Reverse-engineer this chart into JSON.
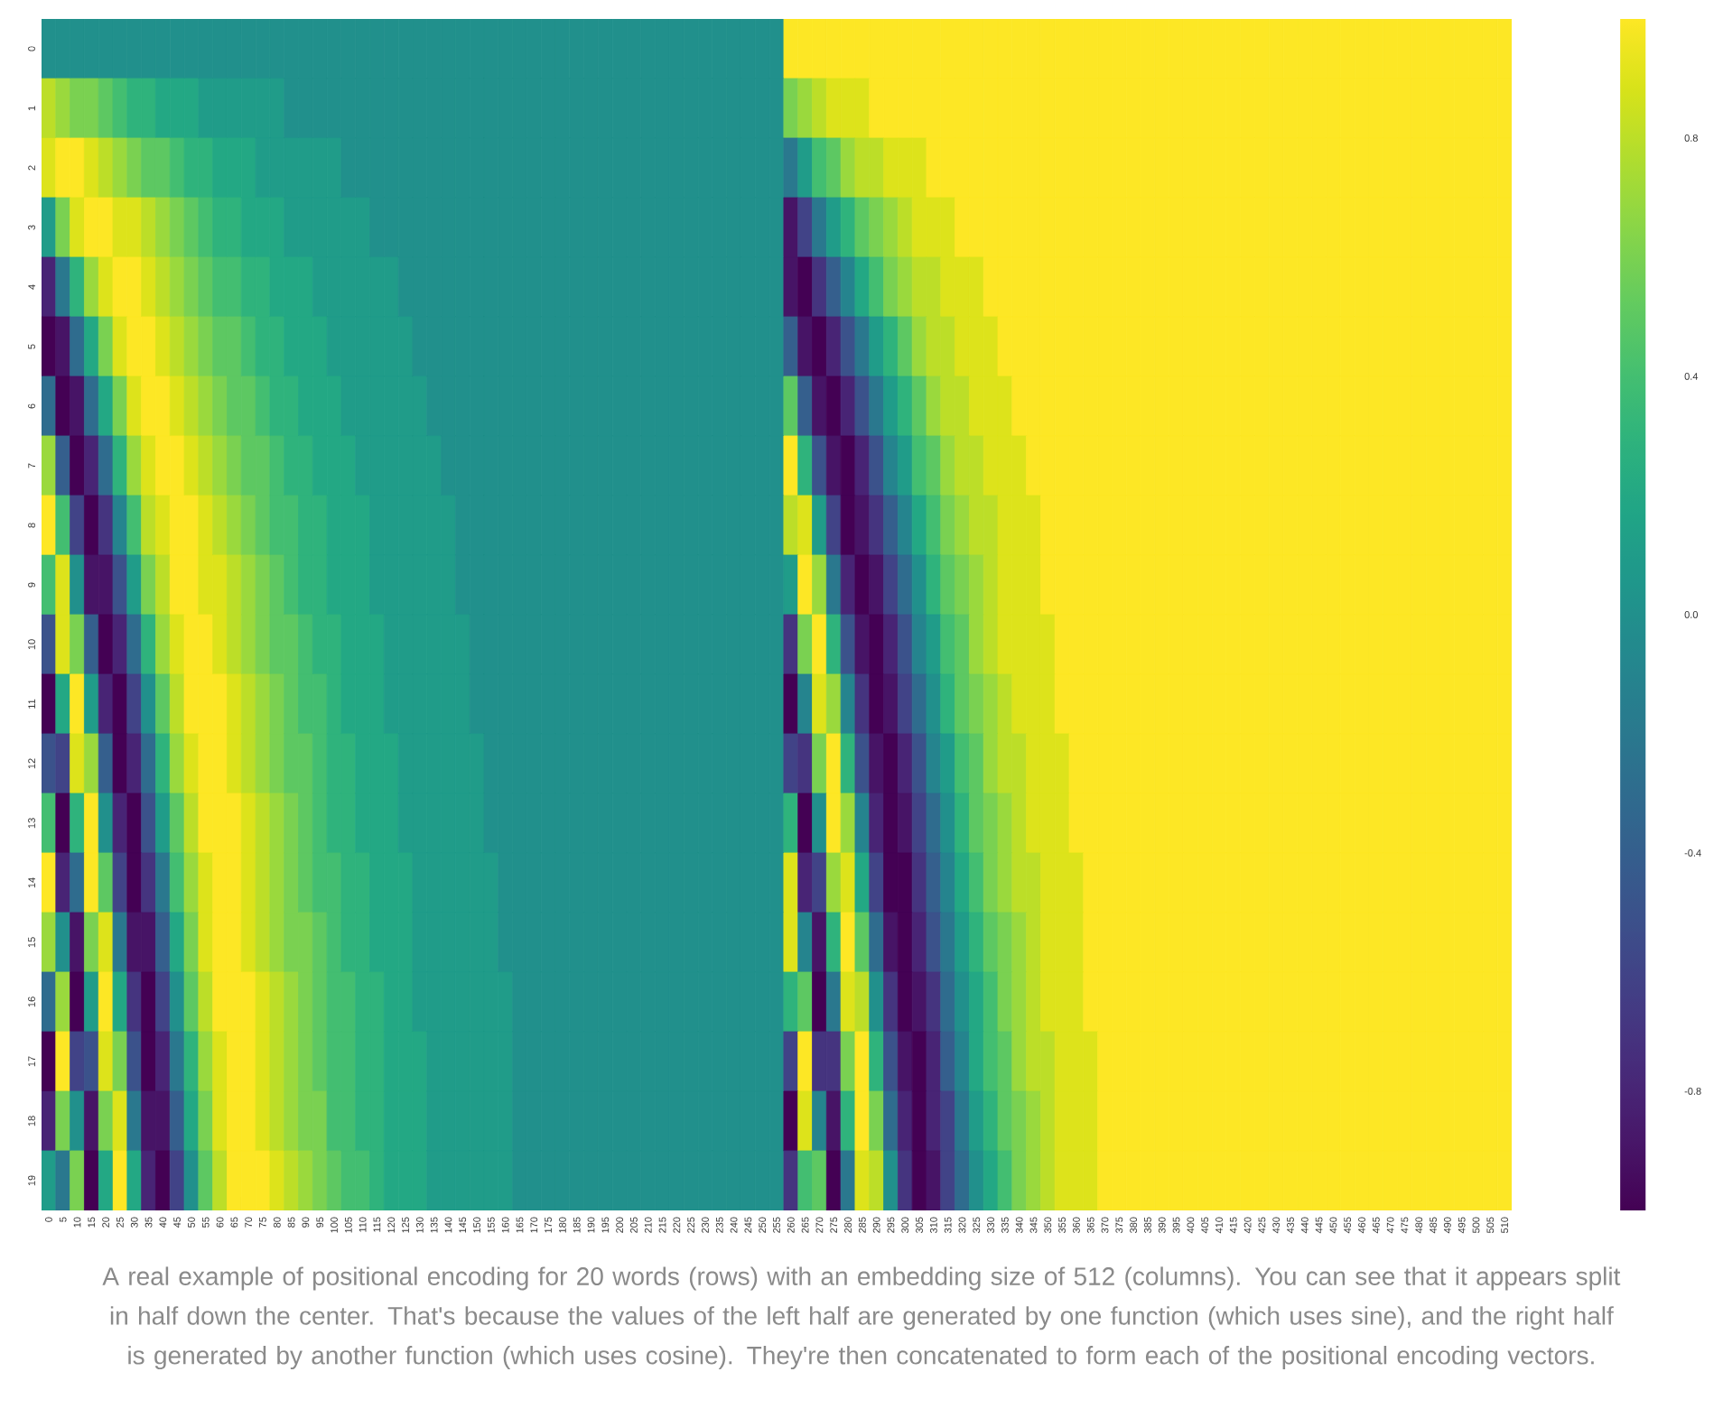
{
  "chart_data": {
    "type": "heatmap",
    "categories": [
      "0",
      "5",
      "10",
      "15",
      "20",
      "25",
      "30",
      "35",
      "40",
      "45",
      "50",
      "55",
      "60",
      "65",
      "70",
      "75",
      "80",
      "85",
      "90",
      "95",
      "100",
      "105",
      "110",
      "115",
      "120",
      "125",
      "130",
      "135",
      "140",
      "145",
      "150",
      "155",
      "160",
      "165",
      "170",
      "175",
      "180",
      "185",
      "190",
      "195",
      "200",
      "205",
      "210",
      "215",
      "220",
      "225",
      "230",
      "235",
      "240",
      "245",
      "250",
      "255",
      "260",
      "265",
      "270",
      "275",
      "280",
      "285",
      "290",
      "295",
      "300",
      "305",
      "310",
      "315",
      "320",
      "325",
      "330",
      "335",
      "340",
      "345",
      "350",
      "355",
      "360",
      "365",
      "370",
      "375",
      "380",
      "385",
      "390",
      "395",
      "400",
      "405",
      "410",
      "415",
      "420",
      "425",
      "430",
      "435",
      "440",
      "445",
      "450",
      "455",
      "460",
      "465",
      "470",
      "475",
      "480",
      "485",
      "490",
      "495",
      "500",
      "505",
      "510"
    ],
    "y_categories": [
      "0",
      "1",
      "2",
      "3",
      "4",
      "5",
      "6",
      "7",
      "8",
      "9",
      "10",
      "11",
      "12",
      "13",
      "14",
      "15",
      "16",
      "17",
      "18",
      "19"
    ],
    "cells": [
      [
        0,
        0,
        0,
        0,
        0,
        0,
        0,
        0,
        0,
        0,
        0,
        0,
        0,
        0,
        0,
        0,
        0,
        0,
        0,
        0,
        0,
        0,
        0,
        0,
        0,
        0,
        0,
        0,
        0,
        0,
        0,
        0,
        0,
        0,
        0,
        0,
        0,
        0,
        0,
        0,
        0,
        0,
        0,
        0,
        0,
        0,
        0,
        0,
        0,
        0,
        0,
        0,
        1,
        1,
        1,
        1,
        1,
        1,
        1,
        1,
        1,
        1,
        1,
        1,
        1,
        1,
        1,
        1,
        1,
        1,
        1,
        1,
        1,
        1,
        1,
        1,
        1,
        1,
        1,
        1,
        1,
        1,
        1,
        1,
        1,
        1,
        1,
        1,
        1,
        1,
        1,
        1,
        1,
        1,
        1,
        1,
        1,
        1,
        1,
        1,
        1,
        1,
        1
      ],
      [
        0.8,
        0.7,
        0.6,
        0.6,
        0.5,
        0.4,
        0.3,
        0.3,
        0.2,
        0.2,
        0.2,
        0.1,
        0.1,
        0.1,
        0.1,
        0.1,
        0.1,
        0,
        0,
        0,
        0,
        0,
        0,
        0,
        0,
        0,
        0,
        0,
        0,
        0,
        0,
        0,
        0,
        0,
        0,
        0,
        0,
        0,
        0,
        0,
        0,
        0,
        0,
        0,
        0,
        0,
        0,
        0,
        0,
        0,
        0,
        0,
        0.6,
        0.7,
        0.8,
        0.9,
        0.9,
        0.9,
        1,
        1,
        1,
        1,
        1,
        1,
        1,
        1,
        1,
        1,
        1,
        1,
        1,
        1,
        1,
        1,
        1,
        1,
        1,
        1,
        1,
        1,
        1,
        1,
        1,
        1,
        1,
        1,
        1,
        1,
        1,
        1,
        1,
        1,
        1,
        1,
        1,
        1,
        1,
        1,
        1,
        1,
        1,
        1,
        1
      ],
      [
        0.9,
        1,
        1,
        0.9,
        0.8,
        0.7,
        0.6,
        0.5,
        0.5,
        0.4,
        0.3,
        0.3,
        0.2,
        0.2,
        0.2,
        0.1,
        0.1,
        0.1,
        0.1,
        0.1,
        0.1,
        0,
        0,
        0,
        0,
        0,
        0,
        0,
        0,
        0,
        0,
        0,
        0,
        0,
        0,
        0,
        0,
        0,
        0,
        0,
        0,
        0,
        0,
        0,
        0,
        0,
        0,
        0,
        0,
        0,
        0,
        0,
        -0.2,
        0.1,
        0.4,
        0.5,
        0.7,
        0.8,
        0.8,
        0.9,
        0.9,
        0.9,
        1,
        1,
        1,
        1,
        1,
        1,
        1,
        1,
        1,
        1,
        1,
        1,
        1,
        1,
        1,
        1,
        1,
        1,
        1,
        1,
        1,
        1,
        1,
        1,
        1,
        1,
        1,
        1,
        1,
        1,
        1,
        1,
        1,
        1,
        1,
        1,
        1,
        1,
        1,
        1,
        1
      ],
      [
        0.1,
        0.6,
        0.9,
        1,
        1,
        0.9,
        0.9,
        0.8,
        0.7,
        0.6,
        0.5,
        0.4,
        0.3,
        0.3,
        0.2,
        0.2,
        0.2,
        0.1,
        0.1,
        0.1,
        0.1,
        0.1,
        0.1,
        0,
        0,
        0,
        0,
        0,
        0,
        0,
        0,
        0,
        0,
        0,
        0,
        0,
        0,
        0,
        0,
        0,
        0,
        0,
        0,
        0,
        0,
        0,
        0,
        0,
        0,
        0,
        0,
        0,
        -0.9,
        -0.6,
        -0.2,
        0.1,
        0.3,
        0.5,
        0.6,
        0.7,
        0.8,
        0.9,
        0.9,
        0.9,
        1,
        1,
        1,
        1,
        1,
        1,
        1,
        1,
        1,
        1,
        1,
        1,
        1,
        1,
        1,
        1,
        1,
        1,
        1,
        1,
        1,
        1,
        1,
        1,
        1,
        1,
        1,
        1,
        1,
        1,
        1,
        1,
        1,
        1,
        1,
        1,
        1,
        1,
        1
      ],
      [
        -0.8,
        -0.2,
        0.3,
        0.7,
        0.9,
        1,
        1,
        0.9,
        0.8,
        0.7,
        0.6,
        0.5,
        0.4,
        0.4,
        0.3,
        0.3,
        0.2,
        0.2,
        0.2,
        0.1,
        0.1,
        0.1,
        0.1,
        0.1,
        0.1,
        0,
        0,
        0,
        0,
        0,
        0,
        0,
        0,
        0,
        0,
        0,
        0,
        0,
        0,
        0,
        0,
        0,
        0,
        0,
        0,
        0,
        0,
        0,
        0,
        0,
        0,
        0,
        -0.9,
        -1,
        -0.7,
        -0.4,
        -0.1,
        0.2,
        0.4,
        0.6,
        0.7,
        0.8,
        0.8,
        0.9,
        0.9,
        0.9,
        1,
        1,
        1,
        1,
        1,
        1,
        1,
        1,
        1,
        1,
        1,
        1,
        1,
        1,
        1,
        1,
        1,
        1,
        1,
        1,
        1,
        1,
        1,
        1,
        1,
        1,
        1,
        1,
        1,
        1,
        1,
        1,
        1,
        1,
        1,
        1,
        1
      ],
      [
        -1,
        -0.9,
        -0.3,
        0.2,
        0.6,
        0.9,
        1,
        1,
        0.9,
        0.8,
        0.7,
        0.6,
        0.5,
        0.5,
        0.4,
        0.3,
        0.3,
        0.2,
        0.2,
        0.2,
        0.1,
        0.1,
        0.1,
        0.1,
        0.1,
        0.1,
        0,
        0,
        0,
        0,
        0,
        0,
        0,
        0,
        0,
        0,
        0,
        0,
        0,
        0,
        0,
        0,
        0,
        0,
        0,
        0,
        0,
        0,
        0,
        0,
        0,
        0,
        -0.4,
        -0.9,
        -1,
        -0.8,
        -0.5,
        -0.2,
        0.1,
        0.3,
        0.5,
        0.7,
        0.8,
        0.8,
        0.9,
        0.9,
        0.9,
        1,
        1,
        1,
        1,
        1,
        1,
        1,
        1,
        1,
        1,
        1,
        1,
        1,
        1,
        1,
        1,
        1,
        1,
        1,
        1,
        1,
        1,
        1,
        1,
        1,
        1,
        1,
        1,
        1,
        1,
        1,
        1,
        1,
        1,
        1,
        1
      ],
      [
        -0.3,
        -1,
        -0.9,
        -0.3,
        0.2,
        0.6,
        0.9,
        1,
        1,
        0.9,
        0.8,
        0.7,
        0.6,
        0.5,
        0.5,
        0.4,
        0.3,
        0.3,
        0.2,
        0.2,
        0.2,
        0.1,
        0.1,
        0.1,
        0.1,
        0.1,
        0.1,
        0,
        0,
        0,
        0,
        0,
        0,
        0,
        0,
        0,
        0,
        0,
        0,
        0,
        0,
        0,
        0,
        0,
        0,
        0,
        0,
        0,
        0,
        0,
        0,
        0,
        0.5,
        -0.4,
        -0.9,
        -1,
        -0.8,
        -0.5,
        -0.2,
        0.1,
        0.3,
        0.5,
        0.7,
        0.8,
        0.8,
        0.9,
        0.9,
        0.9,
        1,
        1,
        1,
        1,
        1,
        1,
        1,
        1,
        1,
        1,
        1,
        1,
        1,
        1,
        1,
        1,
        1,
        1,
        1,
        1,
        1,
        1,
        1,
        1,
        1,
        1,
        1,
        1,
        1,
        1,
        1,
        1,
        1,
        1,
        1
      ],
      [
        0.7,
        -0.4,
        -1,
        -0.8,
        -0.3,
        0.3,
        0.7,
        0.9,
        1,
        1,
        0.9,
        0.8,
        0.7,
        0.6,
        0.5,
        0.5,
        0.4,
        0.3,
        0.3,
        0.2,
        0.2,
        0.2,
        0.1,
        0.1,
        0.1,
        0.1,
        0.1,
        0.1,
        0,
        0,
        0,
        0,
        0,
        0,
        0,
        0,
        0,
        0,
        0,
        0,
        0,
        0,
        0,
        0,
        0,
        0,
        0,
        0,
        0,
        0,
        0,
        0,
        1,
        0.3,
        -0.5,
        -0.9,
        -1,
        -0.8,
        -0.5,
        -0.1,
        0.1,
        0.4,
        0.5,
        0.7,
        0.8,
        0.8,
        0.9,
        0.9,
        0.9,
        1,
        1,
        1,
        1,
        1,
        1,
        1,
        1,
        1,
        1,
        1,
        1,
        1,
        1,
        1,
        1,
        1,
        1,
        1,
        1,
        1,
        1,
        1,
        1,
        1,
        1,
        1,
        1,
        1,
        1,
        1,
        1,
        1,
        1
      ],
      [
        1,
        0.4,
        -0.6,
        -1,
        -0.7,
        -0.1,
        0.4,
        0.8,
        0.9,
        1,
        1,
        0.9,
        0.8,
        0.7,
        0.6,
        0.5,
        0.4,
        0.4,
        0.3,
        0.3,
        0.2,
        0.2,
        0.2,
        0.1,
        0.1,
        0.1,
        0.1,
        0.1,
        0.1,
        0,
        0,
        0,
        0,
        0,
        0,
        0,
        0,
        0,
        0,
        0,
        0,
        0,
        0,
        0,
        0,
        0,
        0,
        0,
        0,
        0,
        0,
        0,
        0.8,
        0.9,
        0.1,
        -0.6,
        -1,
        -0.9,
        -0.7,
        -0.4,
        -0.1,
        0.2,
        0.4,
        0.6,
        0.7,
        0.8,
        0.8,
        0.9,
        0.9,
        0.9,
        1,
        1,
        1,
        1,
        1,
        1,
        1,
        1,
        1,
        1,
        1,
        1,
        1,
        1,
        1,
        1,
        1,
        1,
        1,
        1,
        1,
        1,
        1,
        1,
        1,
        1,
        1,
        1,
        1,
        1,
        1,
        1,
        1
      ],
      [
        0.4,
        0.9,
        0,
        -0.9,
        -0.9,
        -0.5,
        0.1,
        0.6,
        0.8,
        1,
        1,
        0.9,
        0.9,
        0.8,
        0.7,
        0.6,
        0.5,
        0.4,
        0.3,
        0.3,
        0.2,
        0.2,
        0.2,
        0.1,
        0.1,
        0.1,
        0.1,
        0.1,
        0.1,
        0,
        0,
        0,
        0,
        0,
        0,
        0,
        0,
        0,
        0,
        0,
        0,
        0,
        0,
        0,
        0,
        0,
        0,
        0,
        0,
        0,
        0,
        0,
        0.1,
        1,
        0.7,
        -0.2,
        -0.8,
        -1,
        -0.9,
        -0.6,
        -0.3,
        0,
        0.3,
        0.5,
        0.6,
        0.7,
        0.8,
        0.9,
        0.9,
        0.9,
        1,
        1,
        1,
        1,
        1,
        1,
        1,
        1,
        1,
        1,
        1,
        1,
        1,
        1,
        1,
        1,
        1,
        1,
        1,
        1,
        1,
        1,
        1,
        1,
        1,
        1,
        1,
        1,
        1,
        1,
        1,
        1,
        1
      ],
      [
        -0.5,
        0.9,
        0.6,
        -0.4,
        -1,
        -0.8,
        -0.3,
        0.3,
        0.7,
        0.9,
        1,
        1,
        0.9,
        0.8,
        0.7,
        0.6,
        0.5,
        0.5,
        0.4,
        0.3,
        0.3,
        0.2,
        0.2,
        0.2,
        0.1,
        0.1,
        0.1,
        0.1,
        0.1,
        0.1,
        0,
        0,
        0,
        0,
        0,
        0,
        0,
        0,
        0,
        0,
        0,
        0,
        0,
        0,
        0,
        0,
        0,
        0,
        0,
        0,
        0,
        0,
        -0.7,
        0.6,
        1,
        0.3,
        -0.5,
        -0.9,
        -1,
        -0.8,
        -0.5,
        -0.1,
        0.1,
        0.4,
        0.5,
        0.7,
        0.8,
        0.9,
        0.9,
        0.9,
        0.9,
        1,
        1,
        1,
        1,
        1,
        1,
        1,
        1,
        1,
        1,
        1,
        1,
        1,
        1,
        1,
        1,
        1,
        1,
        1,
        1,
        1,
        1,
        1,
        1,
        1,
        1,
        1,
        1,
        1,
        1,
        1,
        1
      ],
      [
        -1,
        0.2,
        1,
        0.1,
        -0.8,
        -1,
        -0.6,
        0,
        0.5,
        0.8,
        1,
        1,
        1,
        0.9,
        0.8,
        0.7,
        0.6,
        0.5,
        0.4,
        0.4,
        0.3,
        0.2,
        0.2,
        0.2,
        0.1,
        0.1,
        0.1,
        0.1,
        0.1,
        0.1,
        0,
        0,
        0,
        0,
        0,
        0,
        0,
        0,
        0,
        0,
        0,
        0,
        0,
        0,
        0,
        0,
        0,
        0,
        0,
        0,
        0,
        0,
        -1,
        -0.1,
        0.9,
        0.7,
        -0.1,
        -0.7,
        -1,
        -0.9,
        -0.6,
        -0.3,
        0,
        0.3,
        0.5,
        0.6,
        0.7,
        0.8,
        0.9,
        0.9,
        0.9,
        1,
        1,
        1,
        1,
        1,
        1,
        1,
        1,
        1,
        1,
        1,
        1,
        1,
        1,
        1,
        1,
        1,
        1,
        1,
        1,
        1,
        1,
        1,
        1,
        1,
        1,
        1,
        1,
        1,
        1,
        1,
        1
      ],
      [
        -0.5,
        -0.6,
        0.9,
        0.7,
        -0.4,
        -1,
        -0.8,
        -0.3,
        0.3,
        0.7,
        0.9,
        1,
        1,
        0.9,
        0.8,
        0.7,
        0.6,
        0.5,
        0.5,
        0.4,
        0.3,
        0.3,
        0.2,
        0.2,
        0.2,
        0.1,
        0.1,
        0.1,
        0.1,
        0.1,
        0.1,
        0,
        0,
        0,
        0,
        0,
        0,
        0,
        0,
        0,
        0,
        0,
        0,
        0,
        0,
        0,
        0,
        0,
        0,
        0,
        0,
        0,
        -0.6,
        -0.7,
        0.6,
        1,
        0.3,
        -0.5,
        -0.9,
        -1,
        -0.8,
        -0.5,
        -0.1,
        0.1,
        0.4,
        0.5,
        0.7,
        0.8,
        0.8,
        0.9,
        0.9,
        0.9,
        1,
        1,
        1,
        1,
        1,
        1,
        1,
        1,
        1,
        1,
        1,
        1,
        1,
        1,
        1,
        1,
        1,
        1,
        1,
        1,
        1,
        1,
        1,
        1,
        1,
        1,
        1,
        1,
        1,
        1,
        1
      ],
      [
        0.4,
        -1,
        0.3,
        1,
        0,
        -0.8,
        -1,
        -0.5,
        0.1,
        0.5,
        0.8,
        1,
        1,
        1,
        0.9,
        0.8,
        0.7,
        0.6,
        0.5,
        0.4,
        0.3,
        0.3,
        0.2,
        0.2,
        0.2,
        0.1,
        0.1,
        0.1,
        0.1,
        0.1,
        0.1,
        0,
        0,
        0,
        0,
        0,
        0,
        0,
        0,
        0,
        0,
        0,
        0,
        0,
        0,
        0,
        0,
        0,
        0,
        0,
        0,
        0,
        0.3,
        -1,
        0,
        1,
        0.7,
        -0.1,
        -0.8,
        -1,
        -0.9,
        -0.6,
        -0.3,
        0,
        0.3,
        0.5,
        0.6,
        0.7,
        0.8,
        0.9,
        0.9,
        0.9,
        1,
        1,
        1,
        1,
        1,
        1,
        1,
        1,
        1,
        1,
        1,
        1,
        1,
        1,
        1,
        1,
        1,
        1,
        1,
        1,
        1,
        1,
        1,
        1,
        1,
        1,
        1,
        1,
        1,
        1,
        1
      ],
      [
        1,
        -0.8,
        -0.3,
        1,
        0.5,
        -0.6,
        -1,
        -0.7,
        -0.2,
        0.4,
        0.7,
        0.9,
        1,
        1,
        0.9,
        0.8,
        0.7,
        0.6,
        0.5,
        0.4,
        0.4,
        0.3,
        0.3,
        0.2,
        0.2,
        0.2,
        0.1,
        0.1,
        0.1,
        0.1,
        0.1,
        0.1,
        0,
        0,
        0,
        0,
        0,
        0,
        0,
        0,
        0,
        0,
        0,
        0,
        0,
        0,
        0,
        0,
        0,
        0,
        0,
        0,
        0.9,
        -0.8,
        -0.6,
        0.7,
        0.9,
        0.2,
        -0.6,
        -1,
        -1,
        -0.7,
        -0.4,
        -0.1,
        0.2,
        0.4,
        0.6,
        0.7,
        0.8,
        0.8,
        0.9,
        0.9,
        0.9,
        1,
        1,
        1,
        1,
        1,
        1,
        1,
        1,
        1,
        1,
        1,
        1,
        1,
        1,
        1,
        1,
        1,
        1,
        1,
        1,
        1,
        1,
        1,
        1,
        1,
        1,
        1,
        1,
        1,
        1
      ],
      [
        0.7,
        0,
        -0.9,
        0.6,
        0.9,
        -0.2,
        -0.9,
        -0.9,
        -0.4,
        0.2,
        0.6,
        0.9,
        1,
        1,
        0.9,
        0.8,
        0.7,
        0.6,
        0.6,
        0.5,
        0.4,
        0.3,
        0.3,
        0.2,
        0.2,
        0.2,
        0.1,
        0.1,
        0.1,
        0.1,
        0.1,
        0.1,
        0,
        0,
        0,
        0,
        0,
        0,
        0,
        0,
        0,
        0,
        0,
        0,
        0,
        0,
        0,
        0,
        0,
        0,
        0,
        0,
        0.9,
        -0.1,
        -0.9,
        0.3,
        1,
        0.5,
        -0.3,
        -0.9,
        -1,
        -0.8,
        -0.5,
        -0.2,
        0.1,
        0.3,
        0.5,
        0.6,
        0.7,
        0.8,
        0.9,
        0.9,
        0.9,
        1,
        1,
        1,
        1,
        1,
        1,
        1,
        1,
        1,
        1,
        1,
        1,
        1,
        1,
        1,
        1,
        1,
        1,
        1,
        1,
        1,
        1,
        1,
        1,
        1,
        1,
        1,
        1,
        1,
        1
      ],
      [
        -0.3,
        0.7,
        -1,
        0.1,
        1,
        0.2,
        -0.7,
        -1,
        -0.6,
        0,
        0.5,
        0.8,
        1,
        1,
        1,
        0.9,
        0.8,
        0.7,
        0.6,
        0.5,
        0.4,
        0.4,
        0.3,
        0.3,
        0.2,
        0.2,
        0.1,
        0.1,
        0.1,
        0.1,
        0.1,
        0.1,
        0.1,
        0,
        0,
        0,
        0,
        0,
        0,
        0,
        0,
        0,
        0,
        0,
        0,
        0,
        0,
        0,
        0,
        0,
        0,
        0,
        0.3,
        0.5,
        -1,
        -0.2,
        0.9,
        0.8,
        0,
        -0.7,
        -1,
        -0.9,
        -0.7,
        -0.3,
        0,
        0.2,
        0.4,
        0.6,
        0.7,
        0.8,
        0.9,
        0.9,
        0.9,
        1,
        1,
        1,
        1,
        1,
        1,
        1,
        1,
        1,
        1,
        1,
        1,
        1,
        1,
        1,
        1,
        1,
        1,
        1,
        1,
        1,
        1,
        1,
        1,
        1,
        1,
        1,
        1,
        1,
        1
      ],
      [
        -1,
        1,
        -0.6,
        -0.5,
        0.9,
        0.6,
        -0.5,
        -1,
        -0.8,
        -0.2,
        0.3,
        0.7,
        0.9,
        1,
        1,
        0.9,
        0.8,
        0.7,
        0.6,
        0.5,
        0.4,
        0.4,
        0.3,
        0.3,
        0.2,
        0.2,
        0.2,
        0.1,
        0.1,
        0.1,
        0.1,
        0.1,
        0.1,
        0,
        0,
        0,
        0,
        0,
        0,
        0,
        0,
        0,
        0,
        0,
        0,
        0,
        0,
        0,
        0,
        0,
        0,
        0,
        -0.6,
        1,
        -0.7,
        -0.7,
        0.6,
        1,
        0.3,
        -0.5,
        -0.9,
        -1,
        -0.8,
        -0.4,
        -0.1,
        0.2,
        0.4,
        0.5,
        0.7,
        0.8,
        0.8,
        0.9,
        0.9,
        0.9,
        1,
        1,
        1,
        1,
        1,
        1,
        1,
        1,
        1,
        1,
        1,
        1,
        1,
        1,
        1,
        1,
        1,
        1,
        1,
        1,
        1,
        1,
        1,
        1,
        1,
        1,
        1,
        1,
        1
      ],
      [
        -0.8,
        0.6,
        0,
        -0.9,
        0.6,
        0.9,
        -0.2,
        -0.9,
        -0.9,
        -0.4,
        0.2,
        0.6,
        0.9,
        1,
        1,
        0.9,
        0.8,
        0.7,
        0.6,
        0.6,
        0.4,
        0.4,
        0.3,
        0.3,
        0.2,
        0.2,
        0.2,
        0.1,
        0.1,
        0.1,
        0.1,
        0.1,
        0.1,
        0,
        0,
        0,
        0,
        0,
        0,
        0,
        0,
        0,
        0,
        0,
        0,
        0,
        0,
        0,
        0,
        0,
        0,
        0,
        -1,
        0.9,
        -0.1,
        -0.9,
        0.3,
        1,
        0.6,
        -0.3,
        -0.8,
        -1,
        -0.8,
        -0.6,
        -0.2,
        0.1,
        0.3,
        0.5,
        0.6,
        0.7,
        0.8,
        0.9,
        0.9,
        0.9,
        1,
        1,
        1,
        1,
        1,
        1,
        1,
        1,
        1,
        1,
        1,
        1,
        1,
        1,
        1,
        1,
        1,
        1,
        1,
        1,
        1,
        1,
        1,
        1,
        1,
        1,
        1,
        1,
        1
      ],
      [
        0.1,
        -0.2,
        0.6,
        -1,
        0.2,
        1,
        0.2,
        -0.8,
        -1,
        -0.6,
        0,
        0.5,
        0.8,
        1,
        1,
        1,
        0.9,
        0.8,
        0.7,
        0.6,
        0.5,
        0.4,
        0.4,
        0.3,
        0.2,
        0.2,
        0.2,
        0.1,
        0.1,
        0.1,
        0.1,
        0.1,
        0.1,
        0,
        0,
        0,
        0,
        0,
        0,
        0,
        0,
        0,
        0,
        0,
        0,
        0,
        0,
        0,
        0,
        0,
        0,
        0,
        -0.7,
        0.4,
        0.5,
        -1,
        -0.2,
        0.9,
        0.8,
        0,
        -0.7,
        -1,
        -0.9,
        -0.6,
        -0.3,
        0,
        0.2,
        0.4,
        0.6,
        0.7,
        0.8,
        0.9,
        0.9,
        0.9,
        1,
        1,
        1,
        1,
        1,
        1,
        1,
        1,
        1,
        1,
        1,
        1,
        1,
        1,
        1,
        1,
        1,
        1,
        1,
        1,
        1,
        1,
        1,
        1,
        1,
        1,
        1,
        1,
        1
      ]
    ],
    "clim": [
      -1,
      1
    ],
    "cticks": [
      -0.8,
      -0.4,
      {
        "value": 0,
        "label": "0.0"
      },
      0.4,
      0.8
    ],
    "annotations": [
      "A real example of positional encoding for 20 words (rows) with an embedding size of 512 (columns). You can see that it appears split in half down the center. That's because the values of the left half are generated by one function (which uses sine), and the right half is generated by another function (which uses cosine). They're then concatenated to form each of the positional encoding vectors."
    ]
  }
}
